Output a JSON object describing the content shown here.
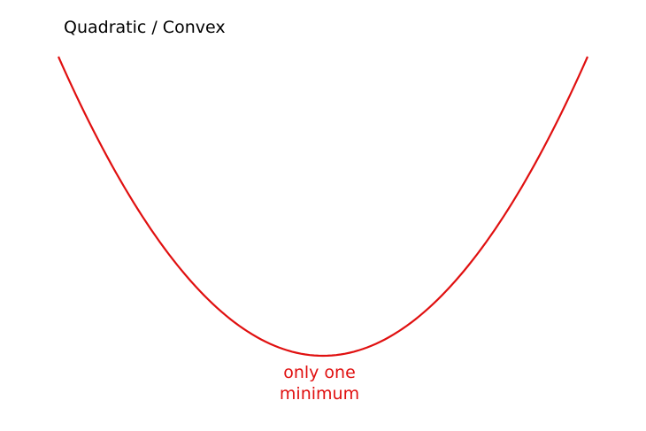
{
  "title": "Quadratic / Convex",
  "annotation": {
    "line1": "only one",
    "line2": "minimum"
  },
  "colors": {
    "curve": "#e01010",
    "annotation": "#e01010",
    "title": "#000000"
  }
}
